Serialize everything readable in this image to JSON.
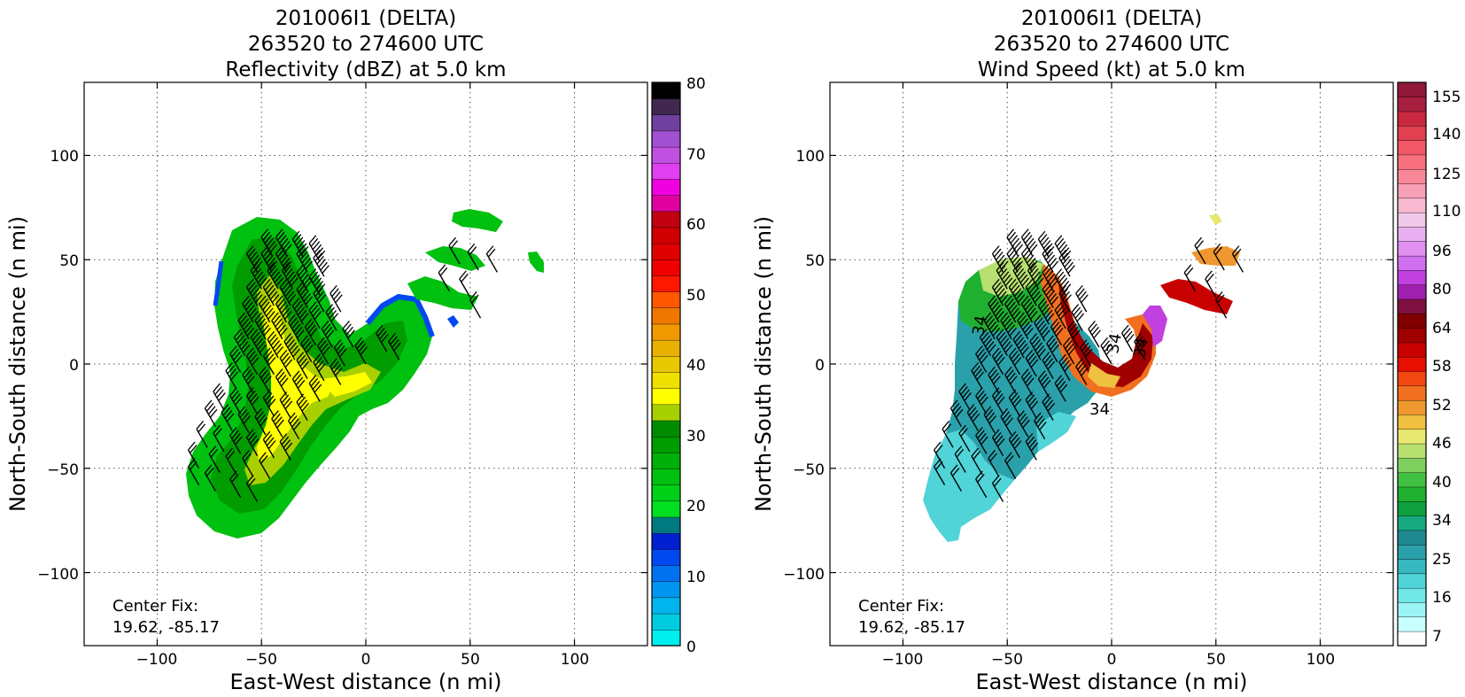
{
  "chart_data": [
    {
      "type": "heatmap",
      "title": [
        "201006I1 (DELTA)",
        "263520 to 274600 UTC",
        "Reflectivity (dBZ) at 5.0 km"
      ],
      "xlabel": "East-West distance (n mi)",
      "ylabel": "North-South distance (n mi)",
      "xlim": [
        -135,
        135
      ],
      "ylim": [
        -135,
        135
      ],
      "xticks": [
        "−100",
        "−50",
        "0",
        "50",
        "100"
      ],
      "yticks": [
        "100",
        "50",
        "0",
        "−50",
        "−100"
      ],
      "grid": true,
      "annotation": [
        "Center Fix:",
        "19.62, -85.17"
      ],
      "colorbar": {
        "range": [
          0,
          80
        ],
        "tick_labels": [
          "80",
          "70",
          "60",
          "50",
          "40",
          "30",
          "20",
          "10",
          "0"
        ],
        "colors": [
          "#00eeee",
          "#00cce0",
          "#00b4ee",
          "#0096f0",
          "#0072f0",
          "#0048f0",
          "#0020d0",
          "#007a80",
          "#00e020",
          "#00d018",
          "#00c010",
          "#00b008",
          "#009c00",
          "#008c00",
          "#a8d000",
          "#ffff00",
          "#f0e000",
          "#e8c800",
          "#e8b000",
          "#f09800",
          "#f07800",
          "#ff5800",
          "#ff1800",
          "#f00000",
          "#e00000",
          "#d00000",
          "#c00010",
          "#e000a0",
          "#f000e0",
          "#e040f0",
          "#c050e0",
          "#a050d0",
          "#7040a0",
          "#402850",
          "#000000"
        ]
      },
      "barbs": [
        [
          -45,
          52,
          8
        ],
        [
          -38,
          52,
          8
        ],
        [
          -30,
          51,
          8
        ],
        [
          -22,
          49,
          6
        ],
        [
          -52,
          44,
          6
        ],
        [
          -45,
          44,
          8
        ],
        [
          -38,
          44,
          8
        ],
        [
          -28,
          44,
          8
        ],
        [
          -20,
          42,
          6
        ],
        [
          -50,
          36,
          6
        ],
        [
          -42,
          36,
          6
        ],
        [
          -35,
          36,
          6
        ],
        [
          -28,
          35,
          6
        ],
        [
          -22,
          33,
          6
        ],
        [
          -52,
          28,
          6
        ],
        [
          -44,
          28,
          6
        ],
        [
          -36,
          28,
          6
        ],
        [
          -28,
          27,
          6
        ],
        [
          -20,
          25,
          4
        ],
        [
          -12,
          25,
          4
        ],
        [
          -54,
          20,
          6
        ],
        [
          -46,
          20,
          6
        ],
        [
          -38,
          20,
          6
        ],
        [
          -30,
          19,
          6
        ],
        [
          -22,
          17,
          4
        ],
        [
          -14,
          16,
          4
        ],
        [
          -56,
          12,
          6
        ],
        [
          -48,
          12,
          6
        ],
        [
          -40,
          12,
          6
        ],
        [
          -32,
          11,
          6
        ],
        [
          -24,
          9,
          4
        ],
        [
          -16,
          8,
          4
        ],
        [
          -6,
          8,
          4
        ],
        [
          10,
          6,
          4
        ],
        [
          -58,
          4,
          6
        ],
        [
          -50,
          4,
          6
        ],
        [
          -42,
          3,
          6
        ],
        [
          -34,
          2,
          6
        ],
        [
          -26,
          1,
          4
        ],
        [
          -18,
          0,
          4
        ],
        [
          -10,
          -1,
          4
        ],
        [
          0,
          0,
          4
        ],
        [
          16,
          2,
          4
        ],
        [
          -60,
          -4,
          4
        ],
        [
          -52,
          -5,
          4
        ],
        [
          -44,
          -5,
          4
        ],
        [
          -36,
          -6,
          4
        ],
        [
          -28,
          -7,
          4
        ],
        [
          -20,
          -8,
          4
        ],
        [
          -12,
          -10,
          4
        ],
        [
          -62,
          -12,
          4
        ],
        [
          -54,
          -14,
          4
        ],
        [
          -46,
          -14,
          4
        ],
        [
          -38,
          -15,
          4
        ],
        [
          -30,
          -16,
          4
        ],
        [
          -22,
          -18,
          4
        ],
        [
          -68,
          -22,
          4
        ],
        [
          -60,
          -24,
          4
        ],
        [
          -52,
          -24,
          4
        ],
        [
          -44,
          -25,
          4
        ],
        [
          -36,
          -26,
          4
        ],
        [
          -28,
          -27,
          4
        ],
        [
          -72,
          -30,
          4
        ],
        [
          -64,
          -32,
          4
        ],
        [
          -56,
          -33,
          4
        ],
        [
          -48,
          -34,
          4
        ],
        [
          -40,
          -35,
          4
        ],
        [
          -32,
          -36,
          4
        ],
        [
          -76,
          -40,
          2
        ],
        [
          -68,
          -42,
          2
        ],
        [
          -60,
          -43,
          4
        ],
        [
          -52,
          -44,
          4
        ],
        [
          -44,
          -45,
          4
        ],
        [
          -36,
          -46,
          4
        ],
        [
          -80,
          -50,
          2
        ],
        [
          -70,
          -52,
          2
        ],
        [
          -62,
          -53,
          2
        ],
        [
          -54,
          -54,
          2
        ],
        [
          -46,
          -55,
          2
        ],
        [
          -80,
          -58,
          2
        ],
        [
          -72,
          -61,
          2
        ],
        [
          -60,
          -64,
          2
        ],
        [
          -52,
          -66,
          2
        ],
        [
          45,
          48,
          2
        ],
        [
          54,
          45,
          2
        ],
        [
          63,
          44,
          2
        ],
        [
          40,
          35,
          2
        ],
        [
          50,
          32,
          2
        ],
        [
          55,
          22,
          2
        ]
      ]
    },
    {
      "type": "heatmap",
      "title": [
        "201006I1 (DELTA)",
        "263520 to 274600 UTC",
        "Wind Speed (kt) at 5.0 km"
      ],
      "xlabel": "East-West distance (n mi)",
      "ylabel": "North-South distance (n mi)",
      "xlim": [
        -135,
        135
      ],
      "ylim": [
        -135,
        135
      ],
      "xticks": [
        "−100",
        "−50",
        "0",
        "50",
        "100"
      ],
      "yticks": [
        "100",
        "50",
        "0",
        "−50",
        "−100"
      ],
      "grid": true,
      "annotation": [
        "Center Fix:",
        "19.62, -85.17"
      ],
      "contour_labels": [
        "34",
        "34",
        "34",
        "34"
      ],
      "colorbar": {
        "range": [
          7,
          160
        ],
        "tick_labels": [
          "155",
          "140",
          "125",
          "110",
          "96",
          "80",
          "64",
          "58",
          "52",
          "46",
          "40",
          "34",
          "25",
          "16",
          "7"
        ],
        "colors": [
          "#ffffff",
          "#c8ffff",
          "#9cf4f4",
          "#70e8e8",
          "#50d4d8",
          "#38b8c0",
          "#2aa0aa",
          "#208890",
          "#18a880",
          "#10a040",
          "#20b030",
          "#40c040",
          "#80d060",
          "#b8e070",
          "#e8e870",
          "#f0c040",
          "#f09830",
          "#f07020",
          "#f04810",
          "#e81000",
          "#c80000",
          "#a00000",
          "#800000",
          "#801040",
          "#a020b0",
          "#c040e0",
          "#d070f0",
          "#e090f0",
          "#e8b0f0",
          "#f0c8e8",
          "#f8b8d0",
          "#f8a0b8",
          "#f88898",
          "#f87080",
          "#f05868",
          "#e04050",
          "#c82840",
          "#a82040",
          "#901838"
        ]
      },
      "barbs": [
        [
          -45,
          52,
          8
        ],
        [
          -38,
          52,
          8
        ],
        [
          -30,
          51,
          8
        ],
        [
          -22,
          49,
          6
        ],
        [
          -52,
          44,
          6
        ],
        [
          -45,
          44,
          8
        ],
        [
          -38,
          44,
          8
        ],
        [
          -28,
          44,
          8
        ],
        [
          -20,
          42,
          6
        ],
        [
          -50,
          36,
          6
        ],
        [
          -42,
          36,
          6
        ],
        [
          -35,
          36,
          6
        ],
        [
          -28,
          35,
          6
        ],
        [
          -22,
          33,
          6
        ],
        [
          -52,
          28,
          6
        ],
        [
          -44,
          28,
          6
        ],
        [
          -36,
          28,
          6
        ],
        [
          -28,
          27,
          6
        ],
        [
          -20,
          25,
          4
        ],
        [
          -12,
          25,
          4
        ],
        [
          -54,
          20,
          6
        ],
        [
          -46,
          20,
          6
        ],
        [
          -38,
          20,
          6
        ],
        [
          -30,
          19,
          6
        ],
        [
          -22,
          17,
          4
        ],
        [
          -14,
          16,
          4
        ],
        [
          -56,
          12,
          6
        ],
        [
          -48,
          12,
          6
        ],
        [
          -40,
          12,
          6
        ],
        [
          -32,
          11,
          6
        ],
        [
          -24,
          9,
          4
        ],
        [
          -16,
          8,
          4
        ],
        [
          -6,
          8,
          4
        ],
        [
          10,
          6,
          4
        ],
        [
          -58,
          4,
          6
        ],
        [
          -50,
          4,
          6
        ],
        [
          -42,
          3,
          6
        ],
        [
          -34,
          2,
          6
        ],
        [
          -26,
          1,
          4
        ],
        [
          -18,
          0,
          4
        ],
        [
          -10,
          -1,
          4
        ],
        [
          0,
          0,
          4
        ],
        [
          16,
          2,
          4
        ],
        [
          -60,
          -4,
          4
        ],
        [
          -52,
          -5,
          4
        ],
        [
          -44,
          -5,
          4
        ],
        [
          -36,
          -6,
          4
        ],
        [
          -28,
          -7,
          4
        ],
        [
          -20,
          -8,
          4
        ],
        [
          -12,
          -10,
          4
        ],
        [
          -62,
          -12,
          4
        ],
        [
          -54,
          -14,
          4
        ],
        [
          -46,
          -14,
          4
        ],
        [
          -38,
          -15,
          4
        ],
        [
          -30,
          -16,
          4
        ],
        [
          -22,
          -18,
          4
        ],
        [
          -68,
          -22,
          4
        ],
        [
          -60,
          -24,
          4
        ],
        [
          -52,
          -24,
          4
        ],
        [
          -44,
          -25,
          4
        ],
        [
          -36,
          -26,
          4
        ],
        [
          -28,
          -27,
          4
        ],
        [
          -72,
          -30,
          4
        ],
        [
          -64,
          -32,
          4
        ],
        [
          -56,
          -33,
          4
        ],
        [
          -48,
          -34,
          4
        ],
        [
          -40,
          -35,
          4
        ],
        [
          -32,
          -36,
          4
        ],
        [
          -76,
          -40,
          2
        ],
        [
          -68,
          -42,
          2
        ],
        [
          -60,
          -43,
          4
        ],
        [
          -52,
          -44,
          4
        ],
        [
          -44,
          -45,
          4
        ],
        [
          -36,
          -46,
          4
        ],
        [
          -80,
          -50,
          2
        ],
        [
          -70,
          -52,
          2
        ],
        [
          -62,
          -53,
          2
        ],
        [
          -54,
          -54,
          2
        ],
        [
          -46,
          -55,
          2
        ],
        [
          -80,
          -58,
          2
        ],
        [
          -72,
          -61,
          2
        ],
        [
          -60,
          -64,
          2
        ],
        [
          -52,
          -66,
          2
        ],
        [
          45,
          48,
          2
        ],
        [
          54,
          45,
          2
        ],
        [
          63,
          44,
          2
        ],
        [
          40,
          35,
          2
        ],
        [
          50,
          32,
          2
        ],
        [
          55,
          22,
          2
        ]
      ]
    }
  ]
}
